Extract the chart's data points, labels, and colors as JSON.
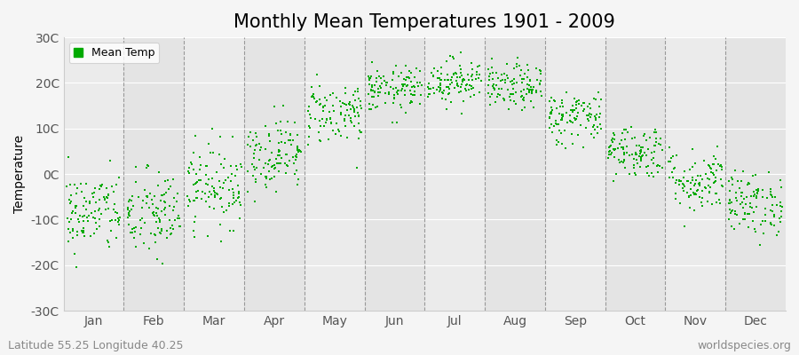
{
  "title": "Monthly Mean Temperatures 1901 - 2009",
  "ylabel": "Temperature",
  "xlabel": "",
  "background_color": "#f5f5f5",
  "plot_bg_color": "#f0f0f0",
  "dot_color": "#00aa00",
  "dot_size": 3,
  "ylim": [
    -30,
    30
  ],
  "ytick_labels": [
    "-30C",
    "-20C",
    "-10C",
    "0C",
    "10C",
    "20C",
    "30C"
  ],
  "ytick_values": [
    -30,
    -20,
    -10,
    0,
    10,
    20,
    30
  ],
  "months": [
    "Jan",
    "Feb",
    "Mar",
    "Apr",
    "May",
    "Jun",
    "Jul",
    "Aug",
    "Sep",
    "Oct",
    "Nov",
    "Dec"
  ],
  "month_centers": [
    0.5,
    1.5,
    2.5,
    3.5,
    4.5,
    5.5,
    6.5,
    7.5,
    8.5,
    9.5,
    10.5,
    11.5
  ],
  "month_dividers": [
    1,
    2,
    3,
    4,
    5,
    6,
    7,
    8,
    9,
    10,
    11
  ],
  "month_means": [
    -8.5,
    -9.0,
    -2.5,
    4.5,
    13.5,
    18.5,
    20.5,
    19.0,
    12.5,
    5.0,
    -1.5,
    -6.5
  ],
  "month_stds": [
    4.5,
    5.0,
    4.5,
    4.0,
    3.5,
    2.5,
    2.5,
    2.5,
    3.0,
    3.0,
    3.5,
    3.5
  ],
  "n_years": 109,
  "footer_left": "Latitude 55.25 Longitude 40.25",
  "footer_right": "worldspecies.org",
  "legend_label": "Mean Temp",
  "title_fontsize": 15,
  "axis_fontsize": 10,
  "footer_fontsize": 9,
  "xlim": [
    0,
    12
  ],
  "grid_stripe_colors": [
    "#ebebeb",
    "#e4e4e4"
  ]
}
